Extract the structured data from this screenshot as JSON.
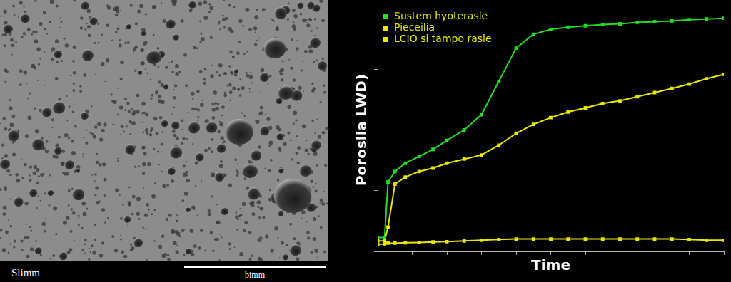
{
  "image": {
    "label": "Slimm",
    "scale_bar_label": "bimm"
  },
  "chart_data": {
    "type": "line",
    "x_label": "Time",
    "y_label": "Poroslia LWD)",
    "x": [
      0,
      2,
      3,
      5,
      8,
      12,
      16,
      20,
      25,
      30,
      35,
      40,
      45,
      50,
      55,
      60,
      65,
      70,
      75,
      80,
      85,
      90,
      95,
      100
    ],
    "series": [
      {
        "name": "Sustem hyoterasle",
        "color": "#22dd22",
        "marker": "square",
        "line_style": "solid",
        "values": [
          5.7,
          5.7,
          28.6,
          32.9,
          36.3,
          39.1,
          42,
          45.7,
          50,
          56.3,
          70,
          83.7,
          89.4,
          91.4,
          92.3,
          92.9,
          93.4,
          93.7,
          94.3,
          94.6,
          94.9,
          95.4,
          95.7,
          96
        ]
      },
      {
        "name": "Pieceilia",
        "color": "#e8e800",
        "marker": "square",
        "line_style": "solid",
        "values": [
          4.3,
          4.3,
          10,
          27.7,
          30.6,
          32.9,
          34.3,
          36.3,
          38,
          39.7,
          43.7,
          48.6,
          52.3,
          55.1,
          57.4,
          59.1,
          60.9,
          62,
          63.7,
          65.4,
          67.1,
          68.9,
          71.1,
          72.9
        ]
      },
      {
        "name": "LCIO si tampo rasle",
        "color": "#e8e800",
        "marker": "square",
        "line_style": "solid",
        "values": [
          2.9,
          3.1,
          3.4,
          3.4,
          3.6,
          3.7,
          3.9,
          4.0,
          4.3,
          4.6,
          4.9,
          5.1,
          5.1,
          5.1,
          5.1,
          5.1,
          5.1,
          5.1,
          5.1,
          5.1,
          5.1,
          4.9,
          4.6,
          4.6
        ]
      }
    ],
    "xlim": [
      0,
      100
    ],
    "ylim": [
      0,
      100
    ],
    "xticks": [
      0,
      10,
      20,
      30,
      40,
      50,
      60,
      70,
      80,
      90,
      100
    ],
    "yticks": [
      0,
      25,
      50,
      75,
      100
    ],
    "tick_labels": false,
    "grid": false,
    "legend": "upper left"
  }
}
